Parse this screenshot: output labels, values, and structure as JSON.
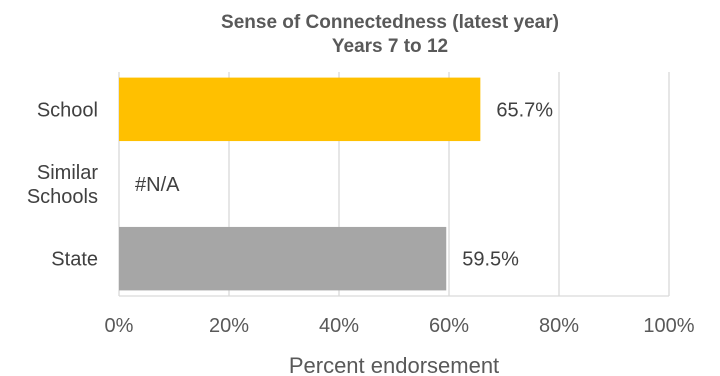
{
  "chart_data": {
    "type": "bar",
    "orientation": "horizontal",
    "title": "Sense of Connectedness (latest year)",
    "subtitle": "Years 7 to 12",
    "categories": [
      {
        "lines": [
          "School"
        ]
      },
      {
        "lines": [
          "Similar",
          "Schools"
        ]
      },
      {
        "lines": [
          "State"
        ]
      }
    ],
    "values": [
      65.7,
      null,
      59.5
    ],
    "data_labels": [
      "65.7%",
      "#N/A",
      "59.5%"
    ],
    "colors": [
      "#FFC000",
      "#FFFFFF",
      "#A6A6A6"
    ],
    "xlabel": "Percent endorsement",
    "xlim": [
      0,
      100
    ],
    "ticks": [
      0,
      20,
      40,
      60,
      80,
      100
    ],
    "tick_labels": [
      "0%",
      "20%",
      "40%",
      "60%",
      "80%",
      "100%"
    ],
    "grid": true,
    "legend": "none"
  }
}
